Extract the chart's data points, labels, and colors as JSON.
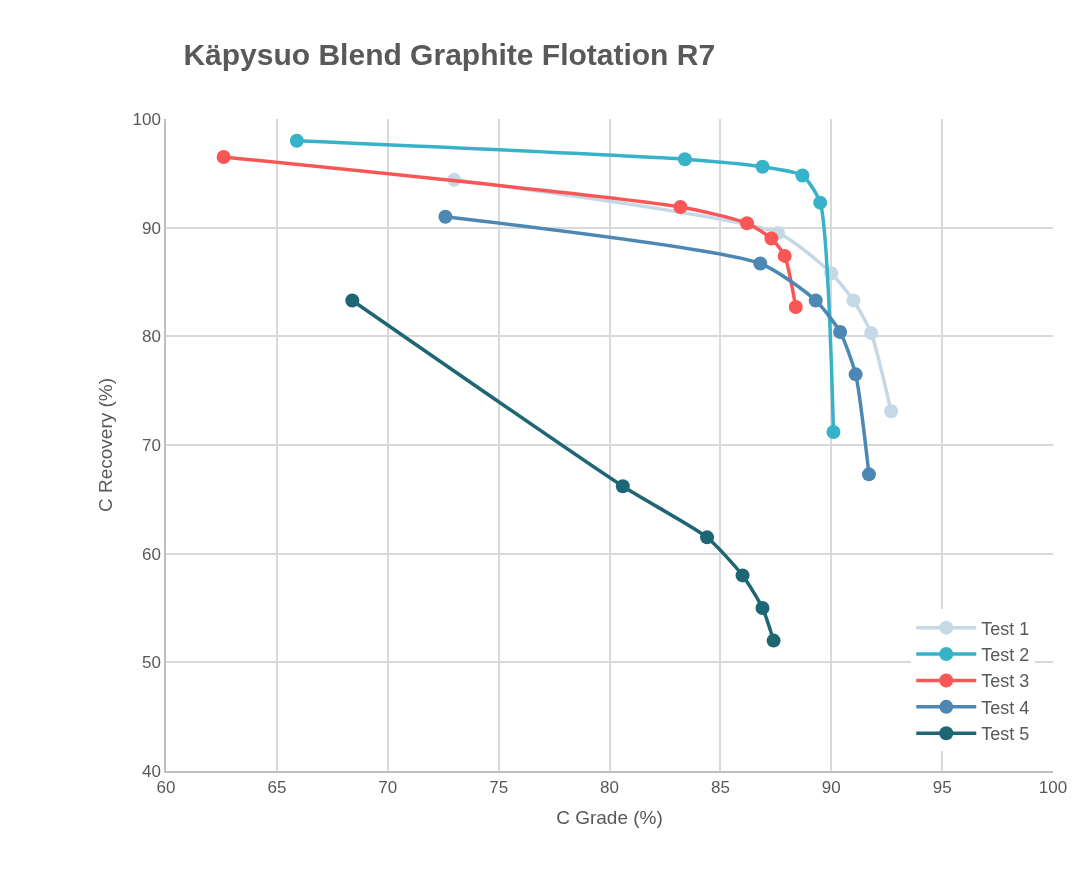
{
  "chart_data": {
    "type": "line",
    "title": "Käpysuo Blend Graphite Flotation R7",
    "xlabel": "C Grade (%)",
    "ylabel": "C Recovery (%)",
    "xlim": [
      60,
      100
    ],
    "xticks": [
      60,
      65,
      70,
      75,
      80,
      85,
      90,
      95,
      100
    ],
    "ylim": [
      40,
      100
    ],
    "yticks": [
      40,
      50,
      60,
      70,
      80,
      90,
      100
    ],
    "grid": true,
    "legend": "bottom right",
    "marker": "circle",
    "line_style": "solid",
    "series": [
      {
        "name": "Test 1",
        "color": "#c5d8e6",
        "x": [
          73.0,
          87.6,
          90.0,
          91.0,
          91.8,
          92.7
        ],
        "values": [
          94.4,
          89.5,
          85.8,
          83.3,
          80.3,
          73.1
        ]
      },
      {
        "name": "Test 2",
        "color": "#38b2c8",
        "x": [
          65.9,
          83.4,
          86.9,
          88.7,
          89.5,
          90.1
        ],
        "values": [
          98.0,
          96.3,
          95.6,
          94.8,
          92.3,
          71.2
        ]
      },
      {
        "name": "Test 3",
        "color": "#f95656",
        "x": [
          62.6,
          83.2,
          86.2,
          87.3,
          87.9,
          88.4
        ],
        "values": [
          96.5,
          91.9,
          90.4,
          89.0,
          87.4,
          82.7
        ]
      },
      {
        "name": "Test 4",
        "color": "#4d88b4",
        "x": [
          72.6,
          86.8,
          89.3,
          90.4,
          91.1,
          91.7
        ],
        "values": [
          91.0,
          86.7,
          83.3,
          80.4,
          76.5,
          67.3
        ]
      },
      {
        "name": "Test 5",
        "color": "#1f6674",
        "x": [
          68.4,
          80.6,
          84.4,
          86.0,
          86.9,
          87.4
        ],
        "values": [
          83.3,
          66.2,
          61.5,
          58.0,
          55.0,
          52.0
        ]
      }
    ]
  }
}
